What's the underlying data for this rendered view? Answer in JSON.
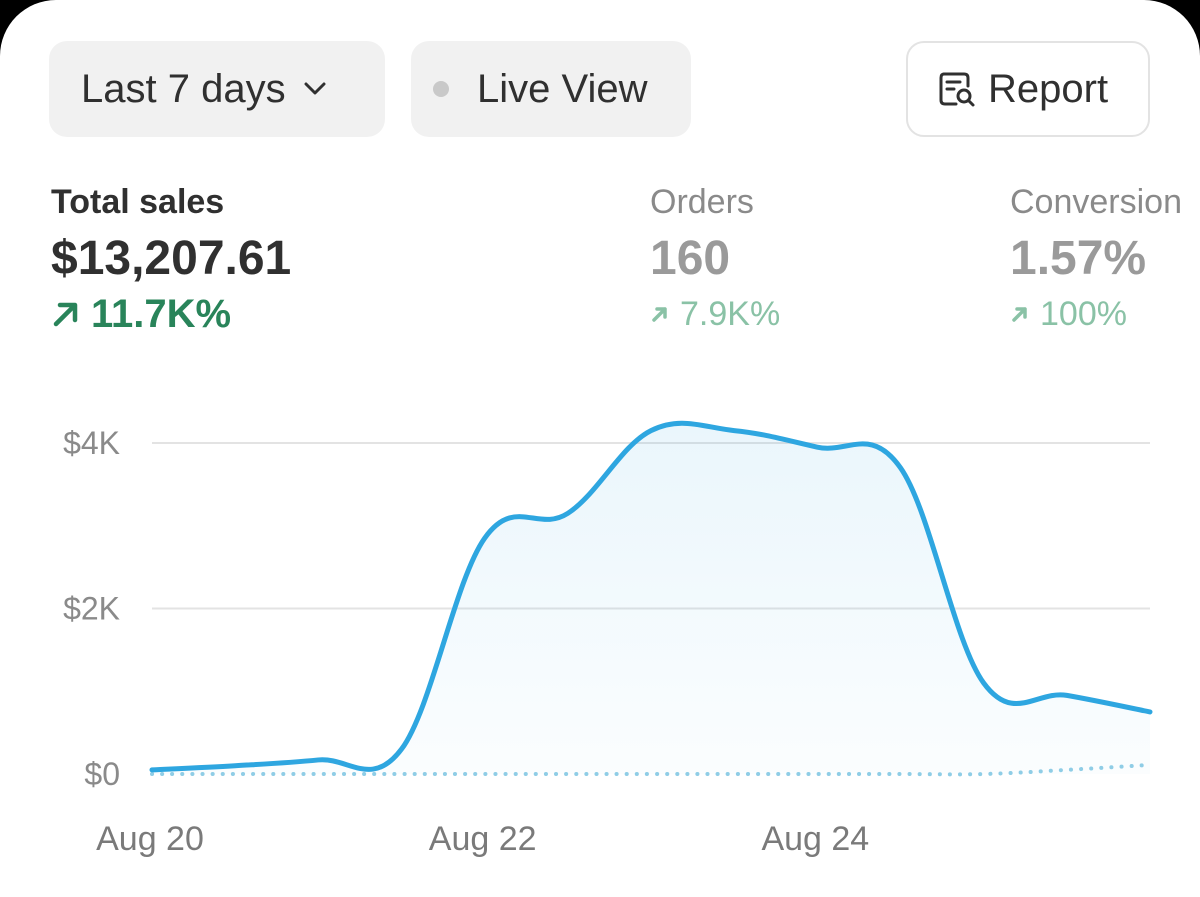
{
  "toolbar": {
    "range_label": "Last 7 days",
    "live_label": "Live View",
    "report_label": "Report"
  },
  "icons": {
    "range": "chevron-down-icon",
    "live": "status-dot-icon",
    "report": "report-search-icon",
    "delta": "arrow-up-right-icon"
  },
  "metrics": {
    "total_sales": {
      "label": "Total sales",
      "value": "$13,207.61",
      "delta": "11.7K%"
    },
    "orders": {
      "label": "Orders",
      "value": "160",
      "delta": "7.9K%"
    },
    "conversion": {
      "label": "Conversion",
      "value": "1.57%",
      "delta": "100%"
    }
  },
  "colors": {
    "line": "#2ea6e0",
    "comparison": "#8fcde6",
    "positive": "#29845a",
    "positive_muted": "#8ac2a6"
  },
  "chart_data": {
    "type": "area",
    "x": [
      "Aug 20",
      "Aug 20.5",
      "Aug 21",
      "Aug 21.5",
      "Aug 22",
      "Aug 22.5",
      "Aug 23",
      "Aug 23.5",
      "Aug 24",
      "Aug 24.5",
      "Aug 25",
      "Aug 25.5",
      "Aug 26"
    ],
    "x_tick_labels": [
      "Aug 20",
      "Aug 22",
      "Aug 24"
    ],
    "y_tick_labels": [
      "$0",
      "$2K",
      "$4K"
    ],
    "ylim": [
      0,
      4000
    ],
    "grid": true,
    "series": [
      {
        "values": [
          50,
          100,
          170,
          300,
          2850,
          3150,
          4150,
          4150,
          3950,
          3700,
          1100,
          950,
          750
        ],
        "style": "solid"
      },
      {
        "values": [
          0,
          0,
          0,
          0,
          0,
          0,
          0,
          0,
          0,
          0,
          0,
          50,
          110
        ],
        "style": "dotted"
      }
    ]
  }
}
